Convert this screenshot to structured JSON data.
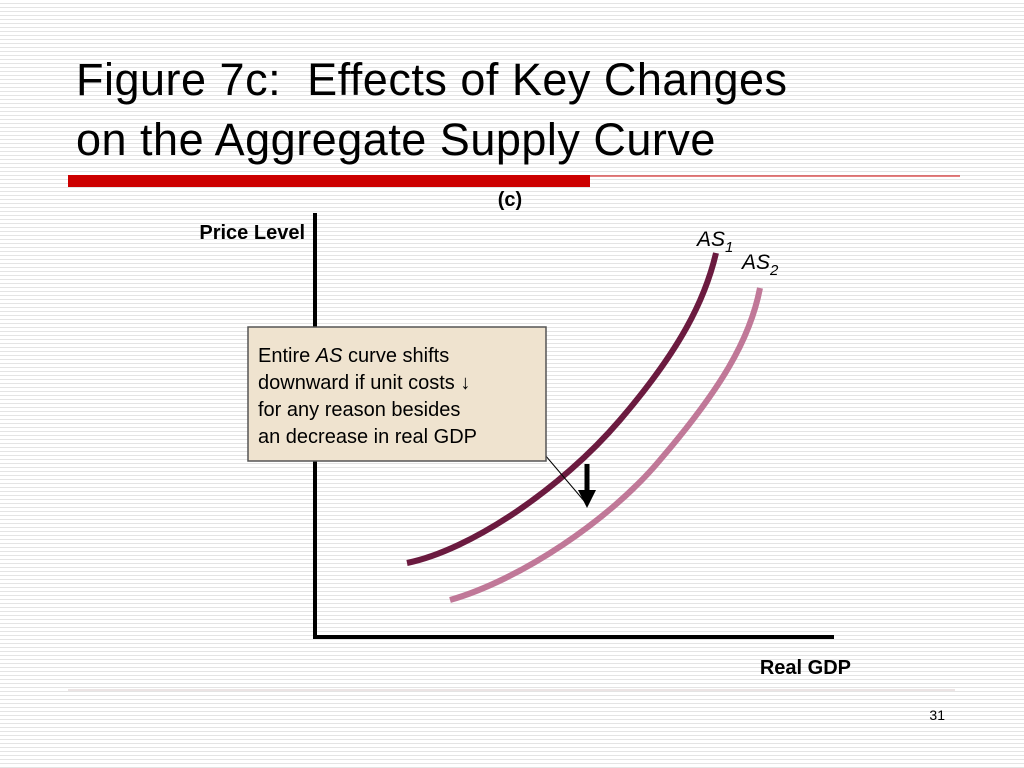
{
  "header": {
    "title_lines": [
      "Figure 7c:  Effects of Key Changes",
      "on the Aggregate Supply Curve"
    ]
  },
  "diagram": {
    "panel_label": "(c)",
    "y_axis_label": "Price Level",
    "x_axis_label": "Real GDP",
    "curves": [
      {
        "label": "AS",
        "subscript": "1"
      },
      {
        "label": "AS",
        "subscript": "2"
      }
    ],
    "callout": {
      "first_line": [
        "Entire ",
        "AS",
        " curve shifts"
      ],
      "lines": [
        "downward if unit costs ↓",
        "for any reason besides",
        "an decrease in real GDP"
      ]
    }
  },
  "footer": {
    "page_number": "31"
  }
}
